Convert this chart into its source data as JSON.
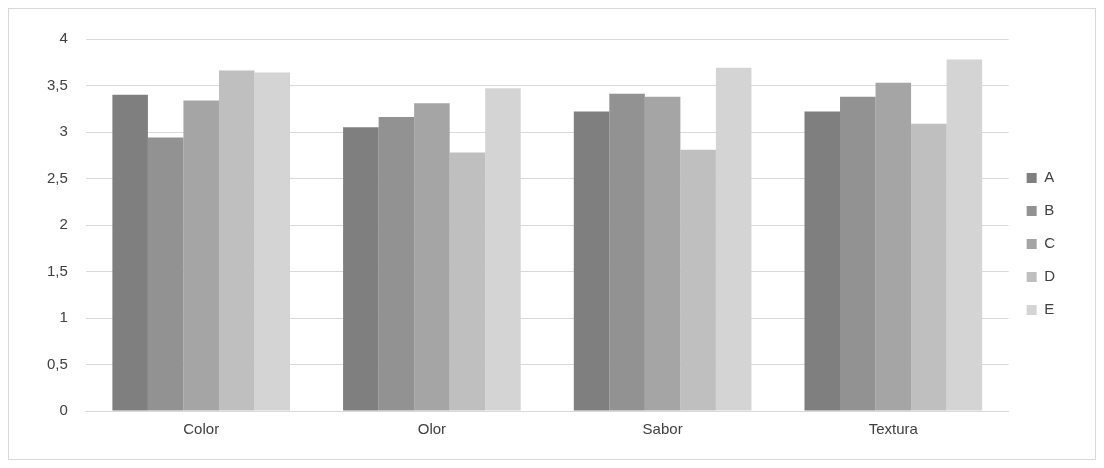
{
  "chart_data": {
    "type": "bar",
    "categories": [
      "Color",
      "Olor",
      "Sabor",
      "Textura"
    ],
    "series": [
      {
        "name": "A",
        "color": "#7f7f7f",
        "values": [
          3.4,
          3.05,
          3.22,
          3.22
        ]
      },
      {
        "name": "B",
        "color": "#929292",
        "values": [
          2.94,
          3.16,
          3.41,
          3.38
        ]
      },
      {
        "name": "C",
        "color": "#a5a5a5",
        "values": [
          3.34,
          3.31,
          3.38,
          3.53
        ]
      },
      {
        "name": "D",
        "color": "#bfbfbf",
        "values": [
          3.66,
          2.78,
          2.81,
          3.09
        ]
      },
      {
        "name": "E",
        "color": "#d4d4d4",
        "values": [
          3.64,
          3.47,
          3.69,
          3.78
        ]
      }
    ],
    "ylim": [
      0,
      4
    ],
    "yticks": [
      {
        "value": 0,
        "label": "0"
      },
      {
        "value": 0.5,
        "label": "0,5"
      },
      {
        "value": 1,
        "label": "1"
      },
      {
        "value": 1.5,
        "label": "1,5"
      },
      {
        "value": 2,
        "label": "2"
      },
      {
        "value": 2.5,
        "label": "2,5"
      },
      {
        "value": 3,
        "label": "3"
      },
      {
        "value": 3.5,
        "label": "3,5"
      },
      {
        "value": 4,
        "label": "4"
      }
    ],
    "grid": "y",
    "legend": "right"
  }
}
